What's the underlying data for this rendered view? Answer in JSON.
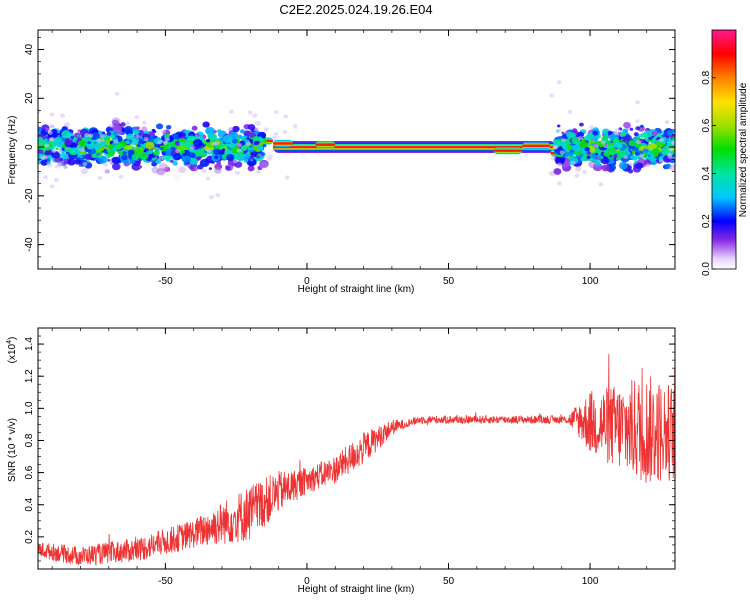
{
  "figure": {
    "title": "C2E2.2025.024.19.26.E04"
  },
  "chart_data": [
    {
      "type": "heatmap",
      "xlabel": "Height of straight line (km)",
      "ylabel": "Frequency (Hz)",
      "xlim": [
        -95,
        130
      ],
      "ylim": [
        -50,
        48
      ],
      "xticks": [
        -50,
        0,
        50,
        100
      ],
      "xtick_labels": [
        "-50",
        "0",
        "50",
        "100"
      ],
      "yticks": [
        -40,
        -20,
        0,
        20,
        40
      ],
      "ytick_labels": [
        "-40",
        "-20",
        "0",
        "20",
        "40"
      ],
      "colorbar": {
        "label": "Normalized spectral amplitude",
        "range": [
          0,
          1
        ],
        "ticks": [
          0.0,
          0.2,
          0.4,
          0.6,
          0.8
        ],
        "tick_labels": [
          "0.0",
          "0.2",
          "0.4",
          "0.6",
          "0.8"
        ],
        "colormap": "rainbow-purple-to-pink"
      },
      "features": {
        "strong_band_center_hz": 0,
        "strong_band_x_range": [
          -12,
          88
        ],
        "noisy_region_left": [
          -95,
          -15
        ],
        "noisy_region_right": [
          88,
          130
        ],
        "noise_spread_hz": 12
      },
      "grid": false
    },
    {
      "type": "line",
      "xlabel": "Height of straight line (km)",
      "ylabel": "SNR (10 * v/v)",
      "y_multiplier_label": "(x10",
      "y_multiplier_exponent": "4",
      "y_multiplier_close": ")",
      "xlim": [
        -95,
        130
      ],
      "ylim": [
        0,
        1.5
      ],
      "xticks": [
        -50,
        0,
        50,
        100
      ],
      "xtick_labels": [
        "-50",
        "0",
        "50",
        "100"
      ],
      "yticks": [
        0.2,
        0.4,
        0.6,
        0.8,
        1.0,
        1.2,
        1.4
      ],
      "ytick_labels": [
        "0.2",
        "0.4",
        "0.6",
        "0.8",
        "1.0",
        "1.2",
        "1.4"
      ],
      "series_color": "#ee3333",
      "trend": {
        "x": [
          -95,
          -80,
          -60,
          -40,
          -20,
          -10,
          0,
          10,
          20,
          30,
          40,
          60,
          80,
          95,
          110,
          130
        ],
        "y": [
          0.12,
          0.08,
          0.12,
          0.22,
          0.35,
          0.48,
          0.55,
          0.62,
          0.75,
          0.88,
          0.93,
          0.93,
          0.93,
          0.93,
          0.88,
          0.85
        ]
      },
      "noise_amplitude": {
        "x": [
          -95,
          -40,
          -20,
          0,
          20,
          35,
          92,
          100,
          120,
          130
        ],
        "a": [
          0.05,
          0.09,
          0.18,
          0.08,
          0.1,
          0.025,
          0.025,
          0.2,
          0.35,
          0.3
        ]
      },
      "grid": false
    }
  ]
}
